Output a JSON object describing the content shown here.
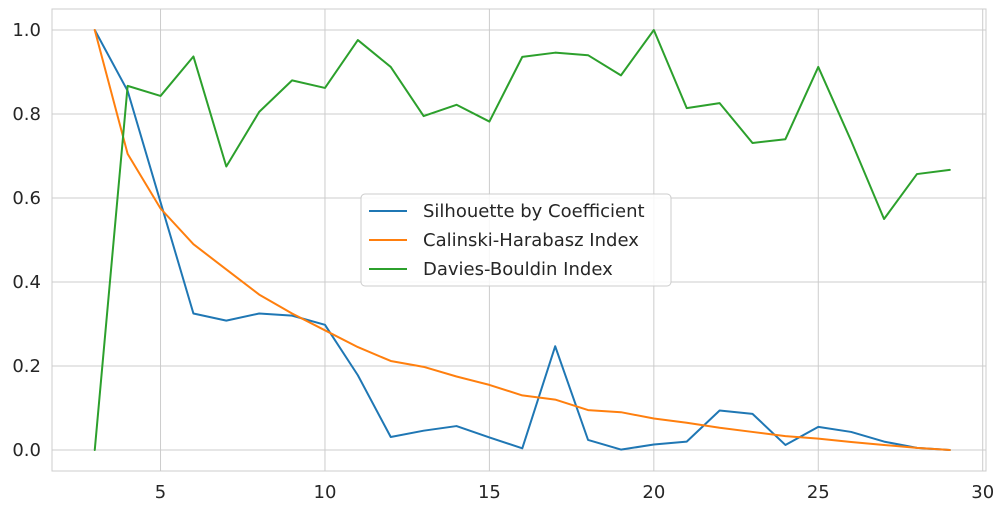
{
  "chart_data": {
    "type": "line",
    "title": "",
    "xlabel": "",
    "ylabel": "",
    "xlim": [
      1.7,
      30.1
    ],
    "ylim": [
      -0.05,
      1.05
    ],
    "grid": true,
    "legend_position": "center",
    "x_ticks": [
      5,
      10,
      15,
      20,
      25,
      30
    ],
    "x_tick_labels": [
      "5",
      "10",
      "15",
      "20",
      "25",
      "30"
    ],
    "y_ticks": [
      0.0,
      0.2,
      0.4,
      0.6,
      0.8,
      1.0
    ],
    "y_tick_labels": [
      "0.0",
      "0.2",
      "0.4",
      "0.6",
      "0.8",
      "1.0"
    ],
    "x": [
      3,
      4,
      5,
      6,
      7,
      8,
      9,
      10,
      11,
      12,
      13,
      14,
      15,
      16,
      17,
      18,
      19,
      20,
      21,
      22,
      23,
      24,
      25,
      26,
      27,
      28,
      29
    ],
    "series": [
      {
        "name": "Silhouette by Coefficient",
        "color": "#1f77b4",
        "values": [
          1.0,
          0.855,
          0.59,
          0.325,
          0.308,
          0.325,
          0.32,
          0.298,
          0.178,
          0.031,
          0.046,
          0.057,
          0.03,
          0.004,
          0.247,
          0.024,
          0.001,
          0.013,
          0.02,
          0.094,
          0.086,
          0.012,
          0.055,
          0.043,
          0.02,
          0.005,
          0.0
        ]
      },
      {
        "name": "Calinski-Harabasz Index",
        "color": "#ff7f0e",
        "values": [
          1.0,
          0.705,
          0.575,
          0.49,
          0.43,
          0.37,
          0.325,
          0.285,
          0.245,
          0.212,
          0.198,
          0.175,
          0.155,
          0.13,
          0.12,
          0.095,
          0.09,
          0.075,
          0.065,
          0.053,
          0.043,
          0.033,
          0.027,
          0.019,
          0.012,
          0.005,
          0.0
        ]
      },
      {
        "name": "Davies-Bouldin Index",
        "color": "#2ca02c",
        "values": [
          0.0,
          0.867,
          0.843,
          0.937,
          0.675,
          0.805,
          0.88,
          0.862,
          0.976,
          0.912,
          0.795,
          0.822,
          0.782,
          0.936,
          0.946,
          0.94,
          0.892,
          1.0,
          0.814,
          0.826,
          0.731,
          0.74,
          0.912,
          0.736,
          0.55,
          0.657,
          0.667
        ]
      }
    ]
  }
}
